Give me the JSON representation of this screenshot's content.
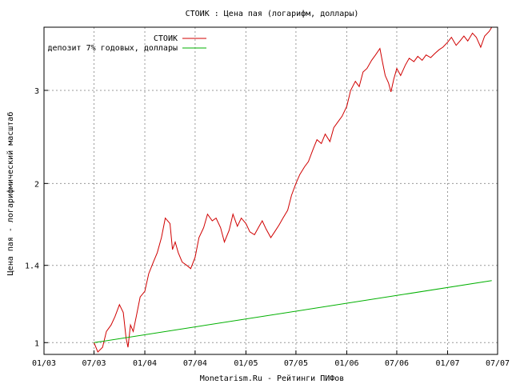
{
  "chart_data": {
    "type": "line",
    "title": "СТОИК : Цена пая (логарифм, доллары)",
    "xlabel": "Monetarism.Ru - Рейтинги ПИФов",
    "ylabel": "Цена пая - логарифмический масштаб",
    "y_scale": "log",
    "ylim": [
      0.95,
      3.95
    ],
    "xlim": [
      "2003-01-01",
      "2007-07-01"
    ],
    "grid": true,
    "legend_position": "top-left",
    "x_ticks": [
      "01/03",
      "07/03",
      "01/04",
      "07/04",
      "01/05",
      "07/05",
      "01/06",
      "07/06",
      "01/07",
      "07/07"
    ],
    "y_ticks": [
      "1",
      "1.4",
      "2",
      "3"
    ],
    "series": [
      {
        "name": "СТОИК",
        "color": "#d00000",
        "x": [
          "2003-07-01",
          "2003-07-15",
          "2003-08-01",
          "2003-08-15",
          "2003-09-01",
          "2003-09-15",
          "2003-10-01",
          "2003-10-15",
          "2003-10-25",
          "2003-11-01",
          "2003-11-10",
          "2003-11-20",
          "2003-12-01",
          "2003-12-15",
          "2004-01-01",
          "2004-01-15",
          "2004-02-01",
          "2004-02-15",
          "2004-03-01",
          "2004-03-15",
          "2004-04-01",
          "2004-04-10",
          "2004-04-20",
          "2004-05-01",
          "2004-05-15",
          "2004-06-01",
          "2004-06-15",
          "2004-07-01",
          "2004-07-15",
          "2004-08-01",
          "2004-08-15",
          "2004-09-01",
          "2004-09-15",
          "2004-10-01",
          "2004-10-15",
          "2004-11-01",
          "2004-11-15",
          "2004-12-01",
          "2004-12-15",
          "2005-01-01",
          "2005-01-15",
          "2005-02-01",
          "2005-02-15",
          "2005-03-01",
          "2005-03-15",
          "2005-04-01",
          "2005-04-15",
          "2005-05-01",
          "2005-05-15",
          "2005-06-01",
          "2005-06-15",
          "2005-07-01",
          "2005-07-15",
          "2005-08-01",
          "2005-08-15",
          "2005-09-01",
          "2005-09-15",
          "2005-10-01",
          "2005-10-15",
          "2005-11-01",
          "2005-11-15",
          "2005-12-01",
          "2005-12-15",
          "2006-01-01",
          "2006-01-15",
          "2006-02-01",
          "2006-02-15",
          "2006-03-01",
          "2006-03-15",
          "2006-04-01",
          "2006-04-15",
          "2006-05-01",
          "2006-05-10",
          "2006-05-20",
          "2006-06-01",
          "2006-06-10",
          "2006-06-20",
          "2006-07-01",
          "2006-07-15",
          "2006-08-01",
          "2006-08-15",
          "2006-09-01",
          "2006-09-15",
          "2006-10-01",
          "2006-10-15",
          "2006-11-01",
          "2006-11-15",
          "2006-12-01",
          "2006-12-15",
          "2007-01-01",
          "2007-01-15",
          "2007-02-01",
          "2007-02-15",
          "2007-03-01",
          "2007-03-15",
          "2007-04-01",
          "2007-04-15",
          "2007-05-01",
          "2007-05-15",
          "2007-06-01",
          "2007-06-10"
        ],
        "y": [
          1.0,
          0.96,
          0.98,
          1.05,
          1.08,
          1.12,
          1.18,
          1.14,
          1.02,
          0.98,
          1.08,
          1.05,
          1.12,
          1.22,
          1.25,
          1.35,
          1.42,
          1.48,
          1.58,
          1.72,
          1.68,
          1.5,
          1.55,
          1.48,
          1.42,
          1.4,
          1.38,
          1.45,
          1.58,
          1.65,
          1.75,
          1.7,
          1.72,
          1.65,
          1.55,
          1.63,
          1.75,
          1.66,
          1.72,
          1.68,
          1.62,
          1.6,
          1.65,
          1.7,
          1.64,
          1.58,
          1.62,
          1.67,
          1.72,
          1.78,
          1.9,
          2.0,
          2.08,
          2.15,
          2.2,
          2.32,
          2.42,
          2.38,
          2.48,
          2.4,
          2.55,
          2.62,
          2.68,
          2.8,
          3.0,
          3.12,
          3.05,
          3.25,
          3.3,
          3.42,
          3.5,
          3.6,
          3.4,
          3.2,
          3.1,
          2.98,
          3.15,
          3.3,
          3.2,
          3.35,
          3.45,
          3.4,
          3.48,
          3.42,
          3.5,
          3.46,
          3.52,
          3.58,
          3.62,
          3.7,
          3.78,
          3.65,
          3.72,
          3.8,
          3.72,
          3.85,
          3.78,
          3.62,
          3.8,
          3.88,
          3.95
        ]
      },
      {
        "name": "депозит 7% годовых, доллары",
        "color": "#00b000",
        "x": [
          "2003-07-01",
          "2007-06-10"
        ],
        "y": [
          1.0,
          1.31
        ]
      }
    ]
  }
}
